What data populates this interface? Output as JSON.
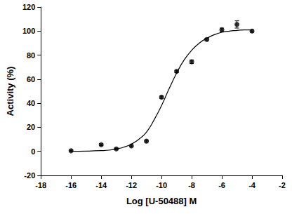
{
  "chart_data": {
    "type": "scatter",
    "x_label": "Log [U-50488] M",
    "y_label": "Activity (%)",
    "xlim": [
      -18,
      -2
    ],
    "xticks": [
      -18,
      -16,
      -14,
      -12,
      -10,
      -8,
      -6,
      -4,
      -2
    ],
    "ylim": [
      -20,
      120
    ],
    "yticks": [
      -20,
      0,
      20,
      40,
      60,
      80,
      100,
      120
    ],
    "grid": false,
    "series": [
      {
        "type": "scatter",
        "color": "#000000",
        "marker": "circle",
        "x": [
          -16,
          -14,
          -13,
          -12,
          -11,
          -10,
          -9,
          -8,
          -7,
          -6,
          -5,
          -4
        ],
        "values": [
          0.5,
          5.5,
          2,
          4.5,
          8.5,
          45,
          66.5,
          74.5,
          93,
          101,
          105.5,
          100
        ],
        "errors": [
          0.5,
          0.8,
          0.6,
          0.8,
          0.8,
          1,
          1,
          1.5,
          1,
          1.5,
          3,
          1
        ]
      },
      {
        "type": "line",
        "color": "#000000",
        "line_style": "solid",
        "x": [
          -16,
          -15,
          -14,
          -13.5,
          -13,
          -12.5,
          -12,
          -11.5,
          -11,
          -10.5,
          -10,
          -9.5,
          -9,
          -8.5,
          -8,
          -7.5,
          -7,
          -6.5,
          -6,
          -5.5,
          -5,
          -4.5,
          -4
        ],
        "values": [
          0,
          0.2,
          0.6,
          1,
          2,
          3.5,
          6,
          10,
          16,
          26,
          38,
          52,
          65,
          76,
          84,
          90,
          94,
          97,
          99,
          100,
          100.5,
          101,
          101
        ]
      }
    ]
  }
}
